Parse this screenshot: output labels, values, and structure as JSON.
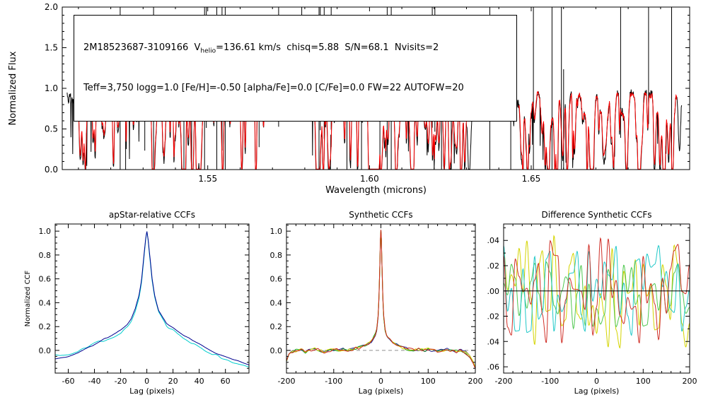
{
  "page": {
    "background": "#ffffff"
  },
  "annotation": {
    "line1_pre": "2M18523687-3109166  V",
    "line1_sub": "helio",
    "line1_post": "=136.61 km/s  chisq=5.88  S/N=68.1  Nvisits=2",
    "line2": "Teff=3,750 logg=1.0 [Fe/H]=-0.50 [alpha/Fe]=0.0 [C/Fe]=0.0 FW=22 AUTOFW=20"
  },
  "chart_data": [
    {
      "id": "spectrum",
      "type": "spectrum-line",
      "title": "",
      "xlabel": "Wavelength (microns)",
      "ylabel": "Normalized Flux",
      "xlim": [
        1.505,
        1.699
      ],
      "ylim": [
        0.0,
        2.0
      ],
      "xticks": {
        "values": [
          1.55,
          1.6,
          1.65
        ],
        "labels": [
          "1.55",
          "1.60",
          "1.65"
        ],
        "minor_step": 0.01
      },
      "yticks": {
        "values": [
          0.0,
          0.5,
          1.0,
          1.5,
          2.0
        ],
        "labels": [
          "0.0",
          "0.5",
          "1.0",
          "1.5",
          "2.0"
        ],
        "minor_step": 0.1
      },
      "segments": [
        [
          1.5065,
          1.57
        ],
        [
          1.5815,
          1.632
        ],
        [
          1.6445,
          1.6965
        ]
      ],
      "lines_per_segment": 135,
      "line_seed": 11,
      "spikes": {
        "seed": 77,
        "count": 36
      },
      "series": [
        {
          "name": "observed",
          "color": "#000000",
          "baseline": 0.96,
          "noise_amp": 0.05,
          "depth_scale": 1.0,
          "seed": 3,
          "glitches": true
        },
        {
          "name": "model",
          "color": "#ff0000",
          "baseline": 0.94,
          "noise_amp": 0.03,
          "depth_scale": 0.88,
          "seed": 4,
          "ranges": [
            [
              1.509,
              1.568
            ],
            [
              1.583,
              1.63
            ],
            [
              1.646,
              1.695
            ]
          ]
        }
      ]
    },
    {
      "id": "apstar",
      "type": "line",
      "title": "apStar-relative CCFs",
      "xlabel": "Lag (pixels)",
      "ylabel": "Normalized CCF",
      "xlim": [
        -70,
        78
      ],
      "ylim": [
        -0.19,
        1.06
      ],
      "xticks": {
        "values": [
          -60,
          -40,
          -20,
          0,
          20,
          40,
          60
        ],
        "labels": [
          "-60",
          "-40",
          "-20",
          "0",
          "20",
          "40",
          "60"
        ],
        "minor_step": 10
      },
      "yticks": {
        "values": [
          0.0,
          0.2,
          0.4,
          0.6,
          0.8,
          1.0
        ],
        "labels": [
          "0.0",
          "0.2",
          "0.4",
          "0.6",
          "0.8",
          "1.0"
        ],
        "minor_step": 0.05
      },
      "series": [
        {
          "name": "ccf-visit-2",
          "color": "#00cdcd",
          "samples": 300,
          "control": {
            "x": [
              -70,
              -60,
              -50,
              -45,
              -40,
              -35,
              -30,
              -25,
              -20,
              -15,
              -12,
              -9,
              -6,
              -4,
              -2,
              -1,
              0,
              1,
              2,
              4,
              6,
              9,
              12,
              15,
              20,
              25,
              30,
              35,
              40,
              45,
              50,
              60,
              70,
              78
            ],
            "y": [
              -0.04,
              -0.03,
              0.0,
              0.03,
              0.06,
              0.08,
              0.1,
              0.12,
              0.15,
              0.2,
              0.25,
              0.32,
              0.44,
              0.58,
              0.8,
              0.92,
              1.0,
              0.92,
              0.8,
              0.58,
              0.44,
              0.32,
              0.26,
              0.21,
              0.17,
              0.13,
              0.1,
              0.06,
              0.03,
              0.0,
              -0.03,
              -0.07,
              -0.11,
              -0.13
            ]
          },
          "noise": {
            "seed": 22,
            "knots": 36,
            "amp": 0.012
          }
        },
        {
          "name": "ccf-visit-1",
          "color": "#00008f",
          "samples": 300,
          "control": {
            "x": [
              -70,
              -60,
              -50,
              -45,
              -40,
              -35,
              -30,
              -25,
              -20,
              -15,
              -12,
              -9,
              -6,
              -4,
              -2,
              -1,
              0,
              1,
              2,
              4,
              6,
              9,
              12,
              15,
              20,
              25,
              30,
              35,
              40,
              45,
              50,
              60,
              70,
              78
            ],
            "y": [
              -0.07,
              -0.05,
              -0.01,
              0.02,
              0.05,
              0.08,
              0.11,
              0.14,
              0.17,
              0.22,
              0.27,
              0.34,
              0.46,
              0.6,
              0.82,
              0.93,
              1.0,
              0.93,
              0.82,
              0.6,
              0.46,
              0.34,
              0.28,
              0.23,
              0.19,
              0.15,
              0.12,
              0.08,
              0.05,
              0.02,
              -0.01,
              -0.05,
              -0.09,
              -0.12
            ]
          },
          "noise": {
            "seed": 21,
            "knots": 36,
            "amp": 0.007
          }
        }
      ]
    },
    {
      "id": "synthetic",
      "type": "line",
      "title": "Synthetic CCFs",
      "xlabel": "Lag (pixels)",
      "ylabel": "",
      "xlim": [
        -200,
        200
      ],
      "ylim": [
        -0.19,
        1.06
      ],
      "xticks": {
        "values": [
          -200,
          -100,
          0,
          100,
          200
        ],
        "labels": [
          "-200",
          "-100",
          "0",
          "100",
          "200"
        ],
        "minor_step": 20
      },
      "yticks": {
        "values": [
          0.0,
          0.2,
          0.4,
          0.6,
          0.8,
          1.0
        ],
        "labels": [
          "0.0",
          "0.2",
          "0.4",
          "0.6",
          "0.8",
          "1.0"
        ],
        "minor_step": 0.05
      },
      "zero_line": {
        "style": "dashed",
        "color": "#909090",
        "on_top": false
      },
      "base_control": {
        "x": [
          -200,
          -195,
          -188,
          -180,
          -170,
          -160,
          -150,
          -140,
          -130,
          -120,
          -110,
          -100,
          -90,
          -80,
          -70,
          -60,
          -50,
          -40,
          -30,
          -25,
          -20,
          -15,
          -12,
          -9,
          -6,
          -4,
          -2,
          -1,
          0,
          1,
          2,
          4,
          6,
          9,
          12,
          15,
          20,
          25,
          30,
          40,
          50,
          60,
          70,
          80,
          90,
          100,
          110,
          120,
          130,
          140,
          150,
          160,
          170,
          180,
          188,
          195,
          200
        ],
        "y": [
          -0.09,
          -0.04,
          -0.01,
          0.0,
          0.01,
          -0.01,
          0.0,
          0.01,
          0.0,
          -0.01,
          0.0,
          0.01,
          0.0,
          0.01,
          0.0,
          0.01,
          0.02,
          0.03,
          0.05,
          0.06,
          0.08,
          0.11,
          0.13,
          0.17,
          0.28,
          0.45,
          0.75,
          0.92,
          1.0,
          0.92,
          0.75,
          0.45,
          0.28,
          0.17,
          0.13,
          0.11,
          0.08,
          0.06,
          0.05,
          0.03,
          0.02,
          0.01,
          0.0,
          0.01,
          0.0,
          0.01,
          0.0,
          -0.01,
          0.0,
          0.01,
          0.0,
          -0.01,
          0.0,
          -0.02,
          -0.05,
          -0.1,
          -0.15
        ]
      },
      "series": [
        {
          "name": "synth-ccf-1",
          "color": "#202090",
          "samples": 400,
          "noise": {
            "seed": 31,
            "knots": 60,
            "amp": 0.013
          }
        },
        {
          "name": "synth-ccf-2",
          "color": "#18a018",
          "samples": 400,
          "noise": {
            "seed": 32,
            "knots": 60,
            "amp": 0.013
          }
        },
        {
          "name": "synth-ccf-3",
          "color": "#d4d400",
          "samples": 400,
          "noise": {
            "seed": 33,
            "knots": 60,
            "amp": 0.013
          }
        },
        {
          "name": "synth-ccf-4",
          "color": "#cc2418",
          "samples": 400,
          "noise": {
            "seed": 34,
            "knots": 60,
            "amp": 0.013
          }
        }
      ]
    },
    {
      "id": "difference",
      "type": "line",
      "title": "Difference Synthetic CCFs",
      "xlabel": "Lag (pixels)",
      "ylabel": "",
      "xlim": [
        -200,
        200
      ],
      "ylim": [
        -0.065,
        0.053
      ],
      "xticks": {
        "values": [
          -200,
          -100,
          0,
          100,
          200
        ],
        "labels": [
          "-200",
          "-100",
          "0",
          "100",
          "200"
        ],
        "minor_step": 20
      },
      "yticks": {
        "values": [
          -0.06,
          -0.04,
          -0.02,
          0.0,
          0.02,
          0.04
        ],
        "labels": [
          "-0.06",
          "-0.04",
          "-0.02",
          "0.00",
          "0.02",
          "0.04"
        ],
        "minor_step": 0.01
      },
      "zero_line": {
        "style": "solid",
        "color": "#000000",
        "on_top": true
      },
      "series": [
        {
          "name": "diff-ccf-yellow",
          "color": "#d4d400",
          "samples": 400,
          "noise": {
            "seed": 41,
            "knots": 48,
            "amp": 0.048
          }
        },
        {
          "name": "diff-ccf-green",
          "color": "#50c850",
          "samples": 400,
          "noise": {
            "seed": 42,
            "knots": 48,
            "amp": 0.03
          }
        },
        {
          "name": "diff-ccf-cyan",
          "color": "#20c8c8",
          "samples": 400,
          "noise": {
            "seed": 43,
            "knots": 48,
            "amp": 0.036
          }
        },
        {
          "name": "diff-ccf-red",
          "color": "#d03028",
          "samples": 400,
          "noise": {
            "seed": 44,
            "knots": 48,
            "amp": 0.042
          }
        }
      ]
    }
  ]
}
